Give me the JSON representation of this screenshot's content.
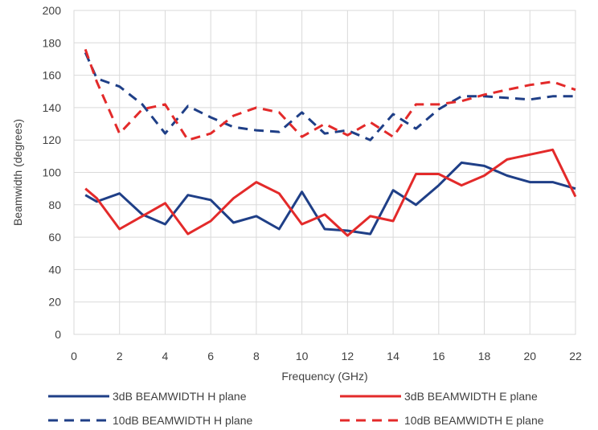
{
  "chart_data": {
    "type": "line",
    "title": "",
    "xlabel": "Frequency (GHz)",
    "ylabel": "Beamwidth (degrees)",
    "xlim": [
      0,
      22
    ],
    "ylim": [
      0,
      200
    ],
    "xticks": [
      0,
      2,
      4,
      6,
      8,
      10,
      12,
      14,
      16,
      18,
      20,
      22
    ],
    "yticks": [
      0,
      20,
      40,
      60,
      80,
      100,
      120,
      140,
      160,
      180,
      200
    ],
    "grid": "vertical and horizontal",
    "legend_position": "bottom",
    "series": [
      {
        "name": "3dB BEAMWIDTH H plane",
        "color": "#1f3f87",
        "style": "solid",
        "x": [
          0.5,
          1,
          2,
          3,
          4,
          5,
          6,
          7,
          8,
          9,
          10,
          11,
          12,
          13,
          14,
          15,
          16,
          17,
          18,
          19,
          20,
          21,
          22
        ],
        "values": [
          86,
          82,
          87,
          74,
          68,
          86,
          83,
          69,
          73,
          65,
          88,
          65,
          64,
          62,
          89,
          80,
          92,
          106,
          104,
          98,
          94,
          94,
          90
        ]
      },
      {
        "name": "3dB BEAMWIDTH E plane",
        "color": "#e32a2a",
        "style": "solid",
        "x": [
          0.5,
          1,
          2,
          3,
          4,
          5,
          6,
          7,
          8,
          9,
          10,
          11,
          12,
          13,
          14,
          15,
          16,
          17,
          18,
          19,
          20,
          21,
          22
        ],
        "values": [
          90,
          84,
          65,
          73,
          81,
          62,
          70,
          84,
          94,
          87,
          68,
          74,
          61,
          73,
          70,
          99,
          99,
          92,
          98,
          108,
          111,
          114,
          85
        ]
      },
      {
        "name": "10dB BEAMWIDTH H plane",
        "color": "#1f3f87",
        "style": "dashed",
        "x": [
          0.5,
          1,
          2,
          3,
          4,
          5,
          6,
          7,
          8,
          9,
          10,
          11,
          12,
          13,
          14,
          15,
          16,
          17,
          18,
          19,
          20,
          21,
          22
        ],
        "values": [
          174,
          158,
          153,
          142,
          124,
          141,
          134,
          128,
          126,
          125,
          137,
          124,
          126,
          120,
          136,
          127,
          139,
          147,
          147,
          146,
          145,
          147,
          147
        ]
      },
      {
        "name": "10dB BEAMWIDTH E plane",
        "color": "#e32a2a",
        "style": "dashed",
        "x": [
          0.5,
          1,
          2,
          3,
          4,
          5,
          6,
          7,
          8,
          9,
          10,
          11,
          12,
          13,
          14,
          15,
          16,
          17,
          18,
          19,
          20,
          21,
          22
        ],
        "values": [
          176,
          156,
          124,
          139,
          142,
          120,
          124,
          135,
          140,
          137,
          122,
          130,
          123,
          131,
          122,
          142,
          142,
          144,
          148,
          151,
          154,
          156,
          151
        ]
      }
    ]
  }
}
